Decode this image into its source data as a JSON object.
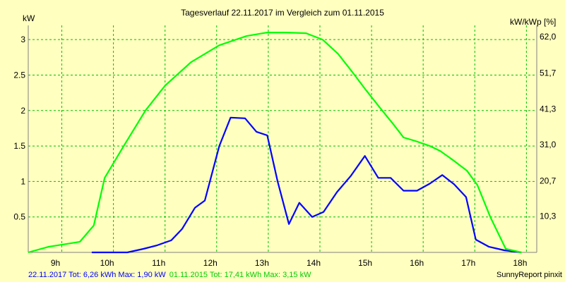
{
  "chart_data": {
    "type": "line",
    "title": "Tagesverlauf 22.11.2017 im Vergleich zum 01.11.2015",
    "ylabel_left": "kW",
    "ylabel_right": "kW/kWp [%]",
    "xlim": [
      8.35,
      18.2
    ],
    "ylim": [
      0,
      3.2
    ],
    "x_ticks": [
      9,
      10,
      11,
      12,
      13,
      14,
      15,
      16,
      17,
      18
    ],
    "x_tick_labels": [
      "9h",
      "10h",
      "11h",
      "12h",
      "13h",
      "14h",
      "15h",
      "16h",
      "17h",
      "18h"
    ],
    "y_ticks_left": [
      0.5,
      1,
      1.5,
      2,
      2.5,
      3
    ],
    "y_tick_labels_left": [
      "0.5",
      "1",
      "1.5",
      "2",
      "2.5",
      "3"
    ],
    "y_ticks_right_at": [
      0.51,
      1.01,
      1.52,
      2.02,
      2.53,
      3.04
    ],
    "y_tick_labels_right": [
      "10,3",
      "20,7",
      "31,0",
      "41,3",
      "51,7",
      "62,0"
    ],
    "grid": true,
    "series": [
      {
        "color": "#0000ff",
        "x": [
          9.58,
          9.77,
          10.0,
          10.27,
          10.58,
          10.85,
          11.12,
          11.33,
          11.58,
          11.77,
          12.05,
          12.27,
          12.55,
          12.77,
          12.98,
          13.18,
          13.4,
          13.6,
          13.85,
          14.07,
          14.33,
          14.6,
          14.87,
          15.13,
          15.37,
          15.62,
          15.88,
          16.13,
          16.37,
          16.6,
          16.83,
          17.02,
          17.27,
          17.57,
          17.9
        ],
        "y": [
          0.0,
          0.0,
          0.0,
          0.0,
          0.05,
          0.1,
          0.17,
          0.33,
          0.63,
          0.73,
          1.5,
          1.9,
          1.89,
          1.7,
          1.65,
          1.0,
          0.4,
          0.7,
          0.5,
          0.57,
          0.85,
          1.08,
          1.36,
          1.05,
          1.05,
          0.87,
          0.87,
          0.97,
          1.09,
          0.96,
          0.78,
          0.18,
          0.08,
          0.03,
          0.0
        ]
      },
      {
        "color": "#00ff00",
        "x": [
          8.35,
          8.75,
          9.1,
          9.35,
          9.62,
          9.83,
          10.2,
          10.62,
          11.0,
          11.5,
          12.05,
          12.58,
          12.98,
          13.35,
          13.73,
          14.05,
          14.35,
          14.62,
          14.9,
          15.15,
          15.43,
          15.62,
          15.85,
          16.13,
          16.33,
          16.58,
          16.85,
          17.05,
          17.3,
          17.6,
          17.9
        ],
        "y": [
          0.0,
          0.08,
          0.12,
          0.15,
          0.38,
          1.05,
          1.5,
          2.0,
          2.35,
          2.68,
          2.92,
          3.05,
          3.1,
          3.1,
          3.09,
          3.0,
          2.8,
          2.55,
          2.28,
          2.05,
          1.8,
          1.62,
          1.57,
          1.5,
          1.43,
          1.3,
          1.15,
          0.95,
          0.5,
          0.05,
          0.0
        ]
      }
    ]
  },
  "footer": {
    "left_blue": "22.11.2017 Tot: 6,26 kWh Max: 1,90 kW",
    "left_green": "01.11.2015 Tot: 17,41 kWh Max: 3,15 kW",
    "right": "SunnyReport pinxit"
  },
  "colors": {
    "background": "#ffffc0",
    "grid": "#00c000",
    "axis": "#808080",
    "blue_series": "#0000ff",
    "green_series": "#00ff00",
    "footer_blue": "#0000ff",
    "footer_green": "#00cc00"
  }
}
